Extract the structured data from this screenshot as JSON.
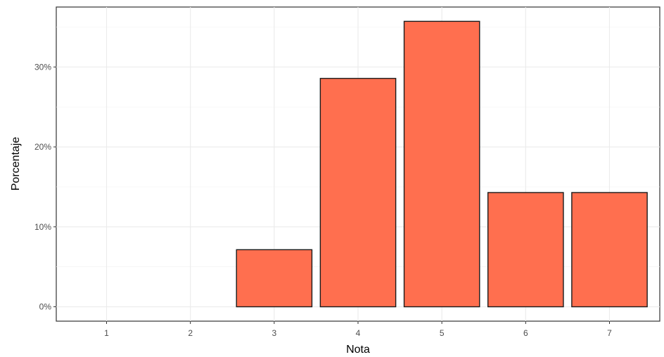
{
  "chart_data": {
    "type": "bar",
    "title": "",
    "xlabel": "Nota",
    "ylabel": "Porcentaje",
    "categories": [
      "1",
      "2",
      "3",
      "4",
      "5",
      "6",
      "7"
    ],
    "values": [
      0,
      0,
      7.14,
      28.57,
      35.71,
      14.29,
      14.29
    ],
    "yticks": [
      0,
      10,
      20,
      30
    ],
    "ytick_labels": [
      "0%",
      "10%",
      "20%",
      "30%"
    ],
    "ylim": [
      -1.8,
      37.5
    ],
    "grid": true,
    "legend": "none",
    "colors": {
      "bar_fill": "#ff6f4f",
      "bar_stroke": "#1a1a1a"
    }
  }
}
